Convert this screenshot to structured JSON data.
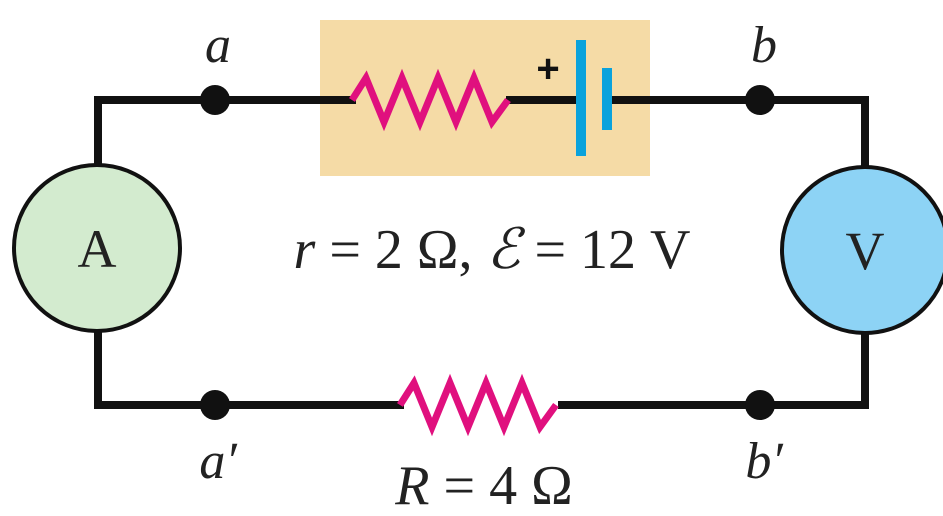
{
  "diagram": {
    "colors": {
      "wire": "#111111",
      "resistor": "#e0107e",
      "battery_plate": "#0aa2dc",
      "source_box": "#f5dba6",
      "ammeter_fill": "#d3ebcf",
      "voltmeter_fill": "#8dd3f5"
    },
    "nodes": {
      "a": "a",
      "b": "b",
      "a_prime": "a′",
      "b_prime": "b′"
    },
    "battery": {
      "plus_sign": "+"
    },
    "meters": {
      "ammeter": "A",
      "voltmeter": "V"
    },
    "source_label": {
      "r": "r",
      "r_value": " = 2 Ω, ",
      "emf": "ℰ",
      "emf_value": " = 12 V"
    },
    "load_label": {
      "R": "R",
      "R_value": " = 4 Ω"
    }
  }
}
